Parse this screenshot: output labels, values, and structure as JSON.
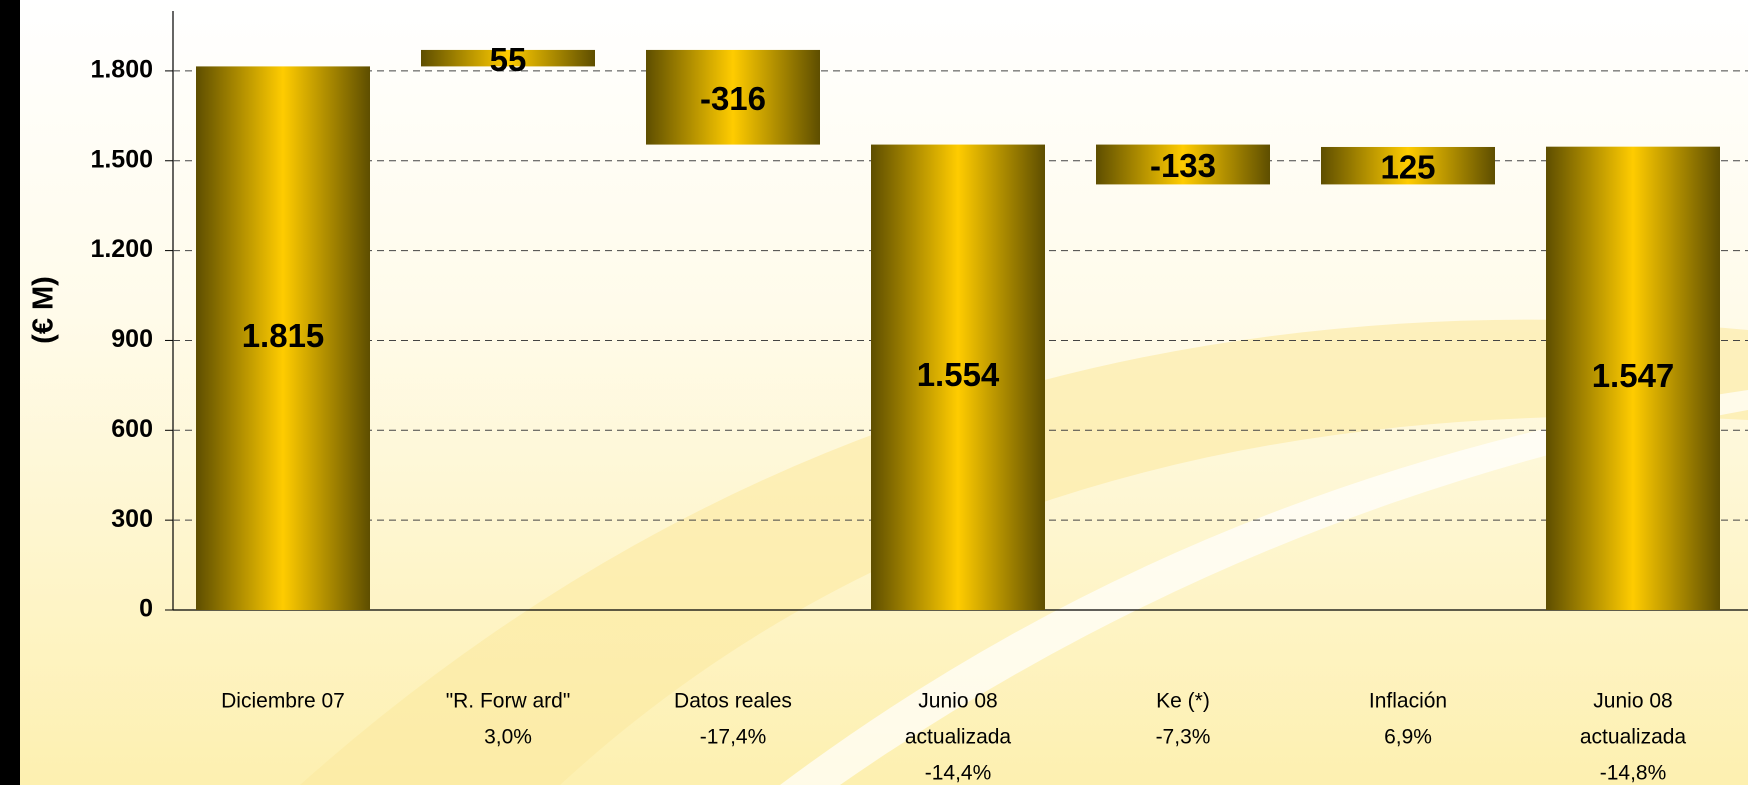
{
  "chart_data": {
    "type": "waterfall",
    "y_label": "(€ M)",
    "categories": [
      [
        "Diciembre 07"
      ],
      [
        "\"R. Forw ard\"",
        "3,0%"
      ],
      [
        "Datos reales",
        "-17,4%"
      ],
      [
        "Junio 08",
        "actualizada",
        "-14,4%"
      ],
      [
        "Ke (*)",
        "-7,3%"
      ],
      [
        "Inflación",
        "6,9%"
      ],
      [
        "Junio 08",
        "actualizada",
        "-14,8%"
      ]
    ],
    "values": [
      1815,
      55,
      -316,
      1554,
      -133,
      125,
      1547
    ],
    "value_labels": [
      "1.815",
      "55",
      "-316",
      "1.554",
      "-133",
      "125",
      "1.547"
    ],
    "totals": [
      true,
      false,
      false,
      true,
      false,
      false,
      true
    ],
    "ylim": [
      0,
      2000
    ],
    "yticks": [
      0,
      300,
      600,
      900,
      {
        "value": 1200,
        "label": "1.200"
      },
      {
        "value": 1500,
        "label": "1.500"
      },
      {
        "value": 1800,
        "label": "1.800"
      }
    ],
    "grid": true,
    "color": "#ffcc00"
  }
}
